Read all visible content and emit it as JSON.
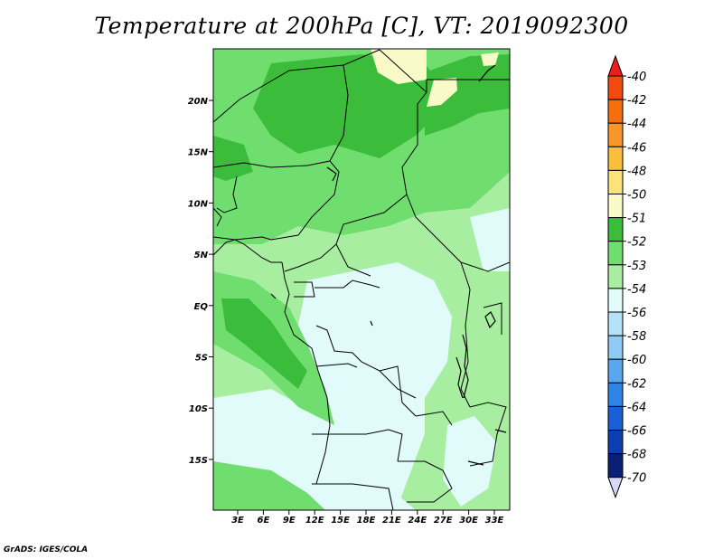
{
  "title": "Temperature at 200hPa [C], VT: 2019092300",
  "credit": "GrADS: IGES/COLA",
  "map": {
    "type": "filled-contour-map",
    "variable": "Temperature",
    "level": "200hPa",
    "units": "C",
    "valid_time": "2019092300",
    "lon_labels": [
      "3E",
      "6E",
      "9E",
      "12E",
      "15E",
      "18E",
      "21E",
      "24E",
      "27E",
      "30E",
      "33E"
    ],
    "lat_labels": [
      "20N",
      "15N",
      "10N",
      "5N",
      "EQ",
      "5S",
      "10S",
      "15S"
    ]
  },
  "colorbar": {
    "levels": [
      "-40",
      "-42",
      "-44",
      "-46",
      "-48",
      "-50",
      "-51",
      "-52",
      "-53",
      "-54",
      "-56",
      "-58",
      "-60",
      "-62",
      "-64",
      "-66",
      "-68",
      "-70"
    ],
    "colors": [
      "#e8201c",
      "#f34a0f",
      "#f5700d",
      "#f8962c",
      "#fbbe3c",
      "#fbe27a",
      "#fafac8",
      "#3bbd3b",
      "#6fde6f",
      "#a8eea0",
      "#e0fbfa",
      "#b4e2f8",
      "#8fcbf5",
      "#5aa6ef",
      "#2f85e6",
      "#1a5fd5",
      "#0b3fb1",
      "#0a1f75",
      "#d8d8f6"
    ]
  },
  "colors": {
    "g52": "#3bbd3b",
    "g53": "#6fde6f",
    "g54": "#a8eea0",
    "c56": "#e0fbfa",
    "y51": "#fafac8",
    "border": "#000000"
  }
}
